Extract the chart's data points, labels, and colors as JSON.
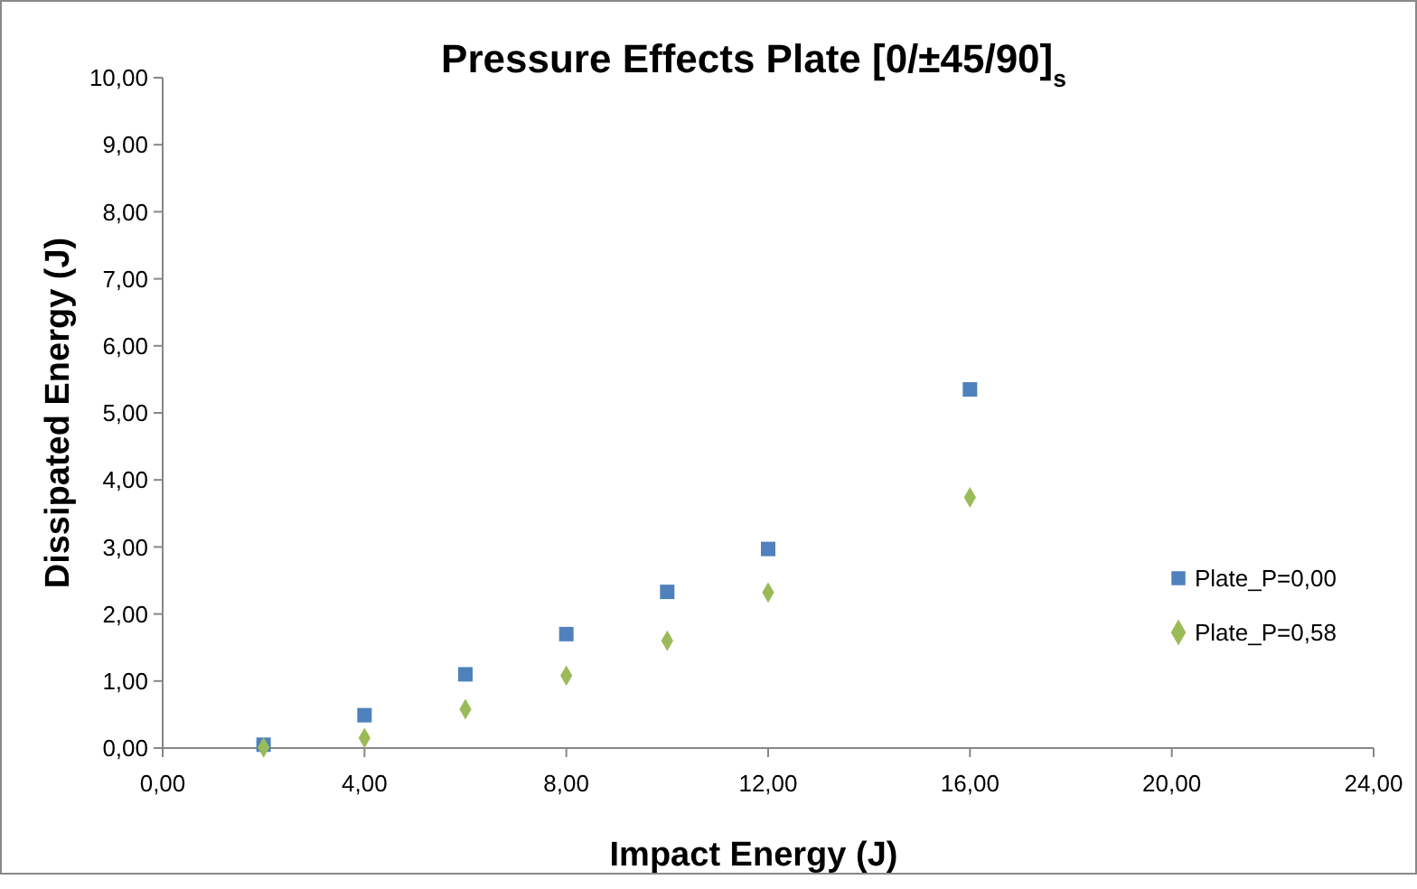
{
  "chart_data": {
    "type": "scatter",
    "title": "Pressure Effects Plate [0/±45/90]$_{s}$",
    "xlabel": "Impact Energy (J)",
    "ylabel": "Dissipated Energy (J)",
    "x": [
      2,
      4,
      6,
      8,
      10,
      12,
      16
    ],
    "series": [
      {
        "name": "Plate_P=0,00",
        "color": "#4f81bd",
        "marker": "square",
        "values": [
          0.05,
          0.49,
          1.1,
          1.7,
          2.33,
          2.97,
          5.35
        ]
      },
      {
        "name": "Plate_P=0,58",
        "color": "#9bbb59",
        "marker": "diamond",
        "values": [
          0.01,
          0.15,
          0.58,
          1.08,
          1.6,
          2.32,
          3.74
        ]
      }
    ],
    "xlim": [
      0,
      24
    ],
    "xticks": [
      {
        "value": 0,
        "label": "0,00"
      },
      {
        "value": 4,
        "label": "4,00"
      },
      {
        "value": 8,
        "label": "8,00"
      },
      {
        "value": 12,
        "label": "12,00"
      },
      {
        "value": 16,
        "label": "16,00"
      },
      {
        "value": 20,
        "label": "20,00"
      },
      {
        "value": 24,
        "label": "24,00"
      }
    ],
    "ylim": [
      0,
      10
    ],
    "yticks": [
      {
        "value": 0,
        "label": "0,00"
      },
      {
        "value": 1,
        "label": "1,00"
      },
      {
        "value": 2,
        "label": "2,00"
      },
      {
        "value": 3,
        "label": "3,00"
      },
      {
        "value": 4,
        "label": "4,00"
      },
      {
        "value": 5,
        "label": "5,00"
      },
      {
        "value": 6,
        "label": "6,00"
      },
      {
        "value": 7,
        "label": "7,00"
      },
      {
        "value": 8,
        "label": "8,00"
      },
      {
        "value": 9,
        "label": "9,00"
      },
      {
        "value": 10,
        "label": "10,00"
      }
    ],
    "legend": "right",
    "grid": false
  }
}
